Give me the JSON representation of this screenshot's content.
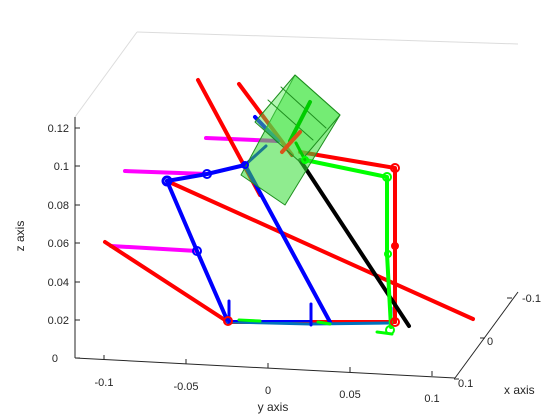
{
  "chart_data": {
    "type": "line",
    "projection": "3d",
    "xlabel": "x axis",
    "ylabel": "y axis",
    "zlabel": "z axis",
    "x_ticks": [
      "-0.1",
      "0",
      "0.1"
    ],
    "y_ticks": [
      "-0.1",
      "-0.05",
      "0",
      "0.05",
      "0.1"
    ],
    "z_ticks": [
      "0",
      "0.02",
      "0.04",
      "0.06",
      "0.08",
      "0.1",
      "0.12"
    ],
    "zlim": [
      0,
      0.13
    ],
    "grid": false,
    "colors": {
      "red": "#ff0000",
      "green": "#00ff00",
      "blue": "#0000ff",
      "magenta": "#ff00ff",
      "black": "#000000",
      "steel_blue": "#0072bd",
      "dark_orange": "#d95319",
      "transparent_green": "#33dd33"
    }
  }
}
